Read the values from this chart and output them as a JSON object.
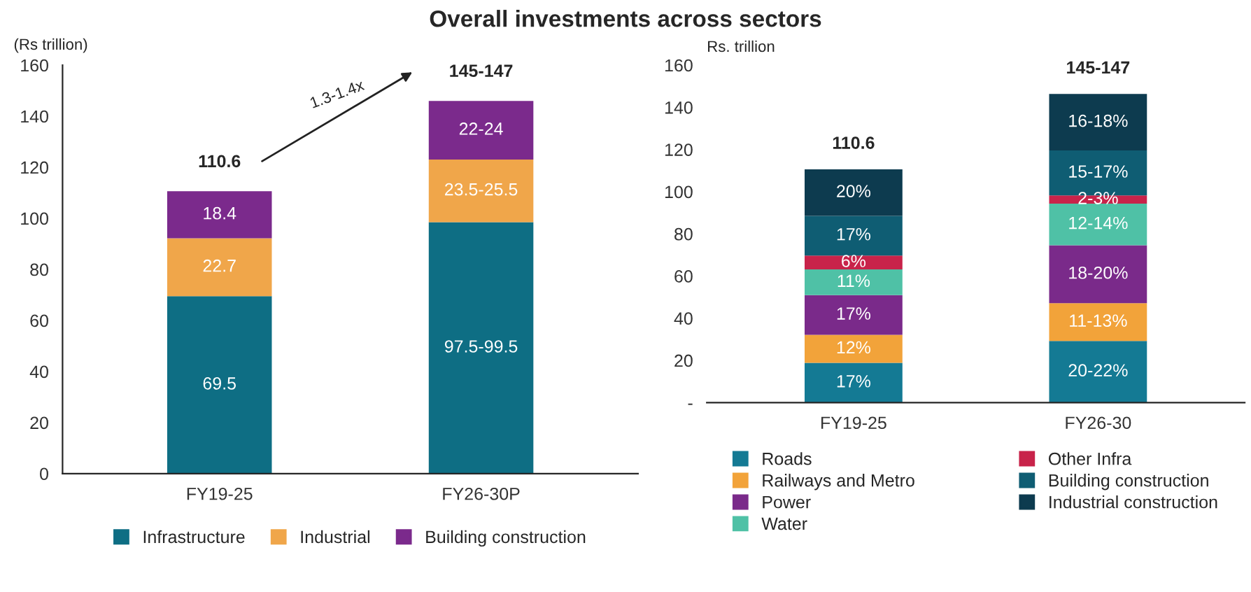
{
  "chart_data": [
    {
      "type": "bar",
      "title": "Overall investments across sectors",
      "ylabel": "(Rs trillion)",
      "categories": [
        "FY19-25",
        "FY26-30P"
      ],
      "stacked": true,
      "ylim": [
        0,
        160
      ],
      "yticks": [
        0,
        20,
        40,
        60,
        80,
        100,
        120,
        140,
        160
      ],
      "grid": false,
      "legend": "bottom",
      "totals": [
        "110.6",
        "145-147"
      ],
      "annotations": [
        "97.5-99.5",
        "23.5-25.5",
        "22-24",
        "1.3-1.4x"
      ],
      "series": [
        {
          "name": "Infrastructure",
          "color": "#0e6e84",
          "values": [
            69.5,
            98.5
          ],
          "value_labels": [
            "69.5",
            null
          ]
        },
        {
          "name": "Industrial",
          "color": "#f0a64a",
          "values": [
            22.7,
            24.5
          ],
          "value_labels": [
            "22.7",
            null
          ]
        },
        {
          "name": "Building construction",
          "color": "#7b2a8c",
          "values": [
            18.4,
            23
          ],
          "value_labels": [
            "18.4",
            null
          ]
        }
      ]
    },
    {
      "type": "bar",
      "ylabel": "Rs. trillion",
      "categories": [
        "FY19-25",
        "FY26-30"
      ],
      "stacked": true,
      "ylim": [
        0,
        160
      ],
      "yticks": [
        {
          "value": 0,
          "label": "-"
        },
        20,
        40,
        60,
        80,
        100,
        120,
        140,
        160
      ],
      "grid": false,
      "legend": "bottom",
      "totals": [
        "110.6",
        "145-147"
      ],
      "annotations": [
        "17%",
        "12%",
        "17%",
        "11%",
        "6%",
        "17%",
        "20%",
        "20-22%",
        "11-13%",
        "18-20%",
        "12-14%",
        "2-3%",
        "15-17%",
        "16-18%"
      ],
      "series": [
        {
          "name": "Roads",
          "color": "#147a94",
          "values": [
            18.8,
            29.2
          ]
        },
        {
          "name": "Railways and Metro",
          "color": "#f2a33a",
          "values": [
            13.3,
            17.9
          ]
        },
        {
          "name": "Power",
          "color": "#7a2a8a",
          "values": [
            18.8,
            27.5
          ]
        },
        {
          "name": "Water",
          "color": "#4fc1a6",
          "values": [
            12.2,
            19.7
          ]
        },
        {
          "name": "Other Infra",
          "color": "#c8234a",
          "values": [
            6.6,
            3.9
          ]
        },
        {
          "name": "Building construction",
          "color": "#0f5d73",
          "values": [
            18.8,
            21.3
          ]
        },
        {
          "name": "Industrial construction",
          "color": "#0d3b4f",
          "values": [
            22.1,
            26.8
          ]
        }
      ]
    }
  ]
}
